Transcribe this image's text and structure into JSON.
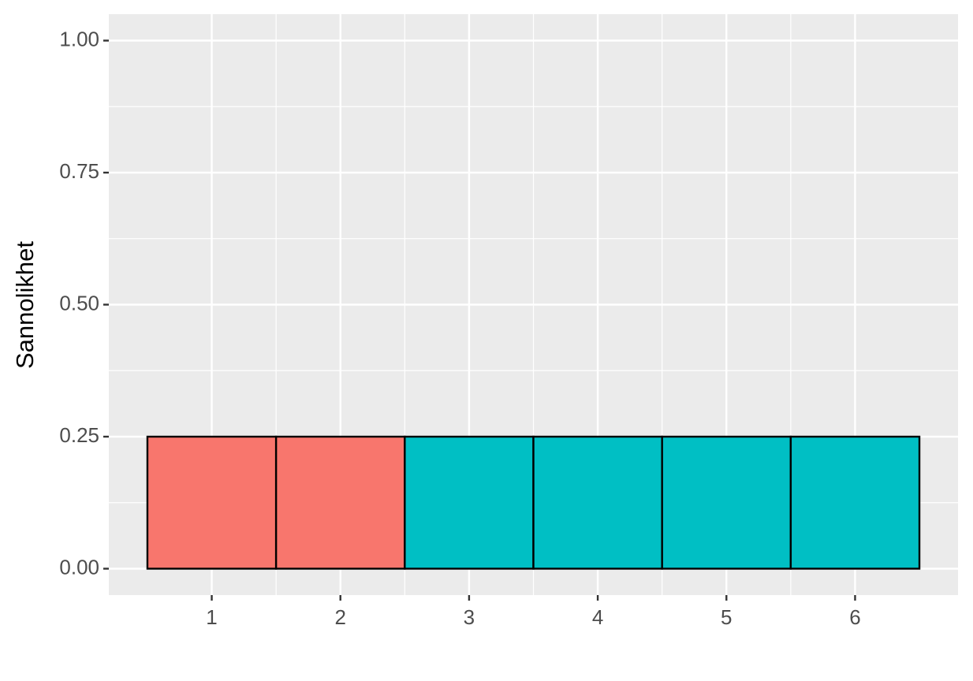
{
  "chart_data": {
    "type": "bar",
    "y_label": "Sannolikhet",
    "categories": [
      "1",
      "2",
      "3",
      "4",
      "5",
      "6"
    ],
    "values": [
      0.25,
      0.25,
      0.25,
      0.25,
      0.25,
      0.25
    ],
    "colors": [
      "#f8766d",
      "#f8766d",
      "#00bfc4",
      "#00bfc4",
      "#00bfc4",
      "#00bfc4"
    ],
    "ylim": [
      -0.05,
      1.05
    ],
    "yticks": [
      {
        "value": 0,
        "label": "0.00"
      },
      {
        "value": 0.25,
        "label": "0.25"
      },
      {
        "value": 0.5,
        "label": "0.50"
      },
      {
        "value": 0.75,
        "label": "0.75"
      },
      {
        "value": 1,
        "label": "1.00"
      }
    ],
    "grid": true
  }
}
